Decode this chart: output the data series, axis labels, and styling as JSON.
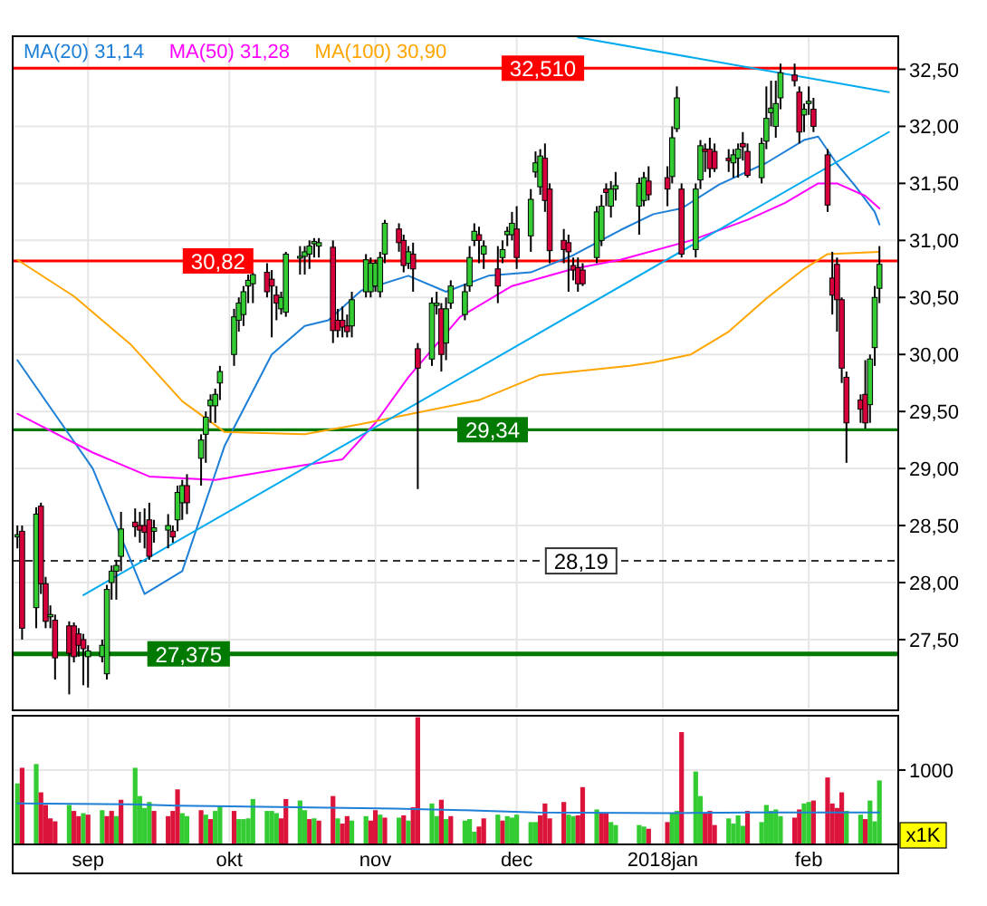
{
  "chart_data": [
    {
      "type": "candlestick",
      "x": [
        "2017-08-17",
        "2017-08-18",
        "2017-08-21",
        "2017-08-22",
        "2017-08-23",
        "2017-08-24",
        "2017-08-25",
        "2017-08-28",
        "2017-08-29",
        "2017-08-30",
        "2017-08-31",
        "2017-09-01",
        "2017-09-04",
        "2017-09-05",
        "2017-09-06",
        "2017-09-07",
        "2017-09-08",
        "2017-09-11",
        "2017-09-12",
        "2017-09-13",
        "2017-09-14",
        "2017-09-15",
        "2017-09-18",
        "2017-09-19",
        "2017-09-20",
        "2017-09-21",
        "2017-09-22",
        "2017-09-25",
        "2017-09-26",
        "2017-09-27",
        "2017-09-28",
        "2017-09-29",
        "2017-10-02",
        "2017-10-03",
        "2017-10-04",
        "2017-10-05",
        "2017-10-06",
        "2017-10-09",
        "2017-10-10",
        "2017-10-11",
        "2017-10-12",
        "2017-10-13",
        "2017-10-16",
        "2017-10-17",
        "2017-10-18",
        "2017-10-19",
        "2017-10-20",
        "2017-10-23",
        "2017-10-24",
        "2017-10-25",
        "2017-10-26",
        "2017-10-27",
        "2017-10-30",
        "2017-10-31",
        "2017-11-01",
        "2017-11-02",
        "2017-11-03",
        "2017-11-06",
        "2017-11-07",
        "2017-11-08",
        "2017-11-09",
        "2017-11-10",
        "2017-11-13",
        "2017-11-14",
        "2017-11-15",
        "2017-11-16",
        "2017-11-17",
        "2017-11-20",
        "2017-11-21",
        "2017-11-22",
        "2017-11-23",
        "2017-11-24",
        "2017-11-27",
        "2017-11-28",
        "2017-11-29",
        "2017-11-30",
        "2017-12-01",
        "2017-12-04",
        "2017-12-05",
        "2017-12-06",
        "2017-12-07",
        "2017-12-08",
        "2017-12-11",
        "2017-12-12",
        "2017-12-13",
        "2017-12-14",
        "2017-12-15",
        "2017-12-18",
        "2017-12-19",
        "2017-12-20",
        "2017-12-21",
        "2017-12-22",
        "2017-12-27",
        "2017-12-28",
        "2017-12-29",
        "2018-01-02",
        "2018-01-03",
        "2018-01-04",
        "2018-01-05",
        "2018-01-08",
        "2018-01-09",
        "2018-01-10",
        "2018-01-11",
        "2018-01-12",
        "2018-01-15",
        "2018-01-16",
        "2018-01-17",
        "2018-01-18",
        "2018-01-19",
        "2018-01-22",
        "2018-01-23",
        "2018-01-24",
        "2018-01-25",
        "2018-01-26",
        "2018-01-29",
        "2018-01-30",
        "2018-01-31",
        "2018-02-01",
        "2018-02-02",
        "2018-02-05",
        "2018-02-06",
        "2018-02-07",
        "2018-02-08",
        "2018-02-09",
        "2018-02-12",
        "2018-02-13",
        "2018-02-14",
        "2018-02-15",
        "2018-02-16"
      ],
      "ohlc": [
        [
          28.4,
          28.5,
          28.3,
          28.42
        ],
        [
          28.45,
          28.5,
          27.5,
          27.6
        ],
        [
          27.78,
          28.66,
          27.6,
          28.6
        ],
        [
          28.67,
          28.7,
          27.9,
          27.99
        ],
        [
          27.99,
          28.05,
          27.6,
          27.66
        ],
        [
          27.7,
          27.8,
          27.6,
          27.72
        ],
        [
          27.67,
          27.72,
          27.15,
          27.34
        ],
        [
          27.62,
          27.66,
          27.02,
          27.38
        ],
        [
          27.62,
          27.65,
          27.3,
          27.35
        ],
        [
          27.55,
          27.6,
          27.35,
          27.45
        ],
        [
          27.5,
          27.55,
          27.1,
          27.42
        ],
        [
          27.35,
          27.45,
          27.08,
          27.4
        ],
        [
          27.35,
          27.5,
          27.3,
          27.45
        ],
        [
          27.2,
          27.98,
          27.15,
          27.94
        ],
        [
          28.0,
          28.15,
          27.85,
          28.1
        ],
        [
          28.1,
          28.2,
          27.85,
          28.15
        ],
        [
          28.23,
          28.62,
          28.1,
          28.47
        ],
        [
          28.53,
          28.65,
          28.4,
          28.49
        ],
        [
          28.5,
          28.62,
          28.35,
          28.46
        ],
        [
          28.5,
          28.65,
          28.3,
          28.44
        ],
        [
          28.55,
          28.7,
          28.2,
          28.23
        ],
        [
          28.45,
          28.55,
          28.35,
          28.48
        ],
        [
          28.46,
          28.6,
          28.3,
          28.5
        ],
        [
          28.45,
          28.5,
          28.35,
          28.4
        ],
        [
          28.55,
          28.85,
          28.45,
          28.79
        ],
        [
          28.7,
          28.9,
          28.55,
          28.85
        ],
        [
          28.85,
          28.95,
          28.6,
          28.7
        ],
        [
          29.09,
          29.3,
          28.85,
          29.25
        ],
        [
          29.3,
          29.5,
          29.05,
          29.45
        ],
        [
          29.55,
          29.65,
          29.4,
          29.6
        ],
        [
          29.55,
          29.7,
          29.4,
          29.65
        ],
        [
          29.75,
          29.9,
          29.6,
          29.85
        ],
        [
          30.0,
          30.4,
          29.9,
          30.33
        ],
        [
          30.3,
          30.5,
          30.2,
          30.45
        ],
        [
          30.35,
          30.6,
          30.25,
          30.55
        ],
        [
          30.6,
          30.7,
          30.45,
          30.65
        ],
        [
          30.62,
          30.72,
          30.45,
          30.7
        ],
        [
          30.72,
          30.8,
          30.5,
          30.55
        ],
        [
          30.66,
          30.74,
          30.15,
          30.6
        ],
        [
          30.52,
          30.6,
          30.3,
          30.45
        ],
        [
          30.4,
          30.55,
          30.35,
          30.5
        ],
        [
          30.37,
          30.9,
          30.33,
          30.88
        ],
        [
          30.85,
          30.95,
          30.7,
          30.86
        ],
        [
          30.86,
          30.95,
          30.7,
          30.9
        ],
        [
          30.88,
          31.0,
          30.75,
          30.95
        ],
        [
          30.97,
          31.02,
          30.85,
          30.99
        ],
        [
          30.95,
          31.02,
          30.85,
          30.98
        ],
        [
          30.94,
          31.0,
          30.1,
          30.21
        ],
        [
          30.3,
          30.4,
          30.15,
          30.21
        ],
        [
          30.3,
          30.42,
          30.15,
          30.24
        ],
        [
          30.25,
          30.35,
          30.15,
          30.2
        ],
        [
          30.25,
          30.55,
          30.15,
          30.48
        ],
        [
          30.55,
          30.88,
          30.5,
          30.83
        ],
        [
          30.55,
          30.85,
          30.5,
          30.8
        ],
        [
          30.6,
          30.83,
          30.55,
          30.8
        ],
        [
          30.55,
          30.9,
          30.5,
          30.85
        ],
        [
          30.88,
          31.18,
          30.8,
          31.15
        ],
        [
          31.1,
          31.15,
          30.9,
          30.98
        ],
        [
          31.0,
          31.05,
          30.72,
          30.78
        ],
        [
          30.8,
          30.95,
          30.75,
          30.9
        ],
        [
          30.88,
          30.98,
          30.55,
          30.75
        ],
        [
          30.05,
          30.1,
          28.82,
          29.88
        ],
        [
          29.96,
          30.5,
          29.9,
          30.45
        ],
        [
          30.43,
          30.55,
          30.35,
          30.45
        ],
        [
          30.4,
          30.45,
          29.85,
          30.0
        ],
        [
          30.1,
          30.5,
          29.95,
          30.4
        ],
        [
          30.45,
          30.65,
          30.4,
          30.6
        ],
        [
          30.35,
          30.62,
          30.3,
          30.55
        ],
        [
          30.6,
          30.95,
          30.55,
          30.85
        ],
        [
          31.0,
          31.15,
          30.95,
          31.08
        ],
        [
          31.05,
          31.12,
          30.8,
          31.0
        ],
        [
          30.88,
          31.0,
          30.75,
          30.95
        ],
        [
          30.75,
          30.95,
          30.45,
          30.6
        ],
        [
          30.85,
          31.0,
          30.8,
          30.92
        ],
        [
          31.05,
          31.12,
          30.95,
          31.08
        ],
        [
          31.05,
          31.25,
          31.0,
          31.15
        ],
        [
          31.1,
          31.3,
          30.75,
          30.85
        ],
        [
          31.04,
          31.45,
          30.9,
          31.36
        ],
        [
          31.6,
          31.78,
          31.55,
          31.68
        ],
        [
          31.47,
          31.8,
          31.4,
          31.74
        ],
        [
          31.72,
          31.85,
          31.25,
          31.35
        ],
        [
          31.45,
          31.5,
          30.8,
          30.91
        ],
        [
          31.0,
          31.1,
          30.8,
          30.92
        ],
        [
          30.98,
          31.05,
          30.55,
          30.9
        ],
        [
          30.78,
          30.85,
          30.65,
          30.74
        ],
        [
          30.76,
          30.85,
          30.55,
          30.62
        ],
        [
          30.74,
          30.8,
          30.6,
          30.62
        ],
        [
          30.85,
          31.3,
          30.8,
          31.25
        ],
        [
          31.0,
          31.4,
          30.95,
          31.3
        ],
        [
          31.45,
          31.5,
          31.3,
          31.42
        ],
        [
          31.3,
          31.52,
          31.2,
          31.45
        ],
        [
          31.45,
          31.6,
          31.35,
          31.48
        ],
        [
          31.3,
          31.55,
          31.05,
          31.5
        ],
        [
          31.35,
          31.6,
          31.3,
          31.55
        ],
        [
          31.52,
          31.65,
          31.35,
          31.4
        ],
        [
          31.55,
          31.65,
          31.3,
          31.45
        ],
        [
          31.56,
          32.0,
          31.5,
          31.9
        ],
        [
          31.98,
          32.35,
          31.95,
          32.25
        ],
        [
          31.45,
          31.5,
          30.85,
          30.88
        ],
        [
          30.92,
          31.5,
          30.85,
          31.45
        ],
        [
          31.53,
          31.88,
          31.45,
          31.83
        ],
        [
          31.8,
          31.85,
          31.6,
          31.78
        ],
        [
          31.8,
          31.9,
          31.55,
          31.63
        ],
        [
          31.78,
          31.85,
          31.6,
          31.63
        ],
        [
          31.72,
          31.8,
          31.6,
          31.7
        ],
        [
          31.68,
          31.8,
          31.55,
          31.75
        ],
        [
          31.72,
          31.85,
          31.55,
          31.8
        ],
        [
          31.85,
          31.95,
          31.7,
          31.82
        ],
        [
          31.78,
          31.85,
          31.55,
          31.57
        ],
        [
          31.55,
          31.9,
          31.5,
          31.85
        ],
        [
          31.87,
          32.35,
          31.8,
          32.07
        ],
        [
          32.12,
          32.4,
          32.0,
          32.16
        ],
        [
          32.0,
          32.4,
          31.9,
          32.2
        ],
        [
          32.25,
          32.55,
          32.15,
          32.47
        ],
        [
          32.45,
          32.55,
          32.35,
          32.4
        ],
        [
          32.3,
          32.35,
          31.85,
          31.95
        ],
        [
          32.1,
          32.2,
          31.95,
          32.15
        ],
        [
          32.2,
          32.35,
          32.1,
          32.22
        ],
        [
          32.15,
          32.25,
          31.95,
          32.0
        ],
        [
          31.75,
          31.8,
          31.25,
          31.31
        ],
        [
          30.67,
          30.9,
          30.35,
          30.52
        ],
        [
          30.79,
          30.85,
          30.2,
          30.48
        ],
        [
          30.48,
          30.5,
          29.75,
          29.88
        ],
        [
          29.8,
          29.85,
          29.05,
          29.4
        ],
        [
          29.6,
          29.65,
          29.4,
          29.52
        ],
        [
          29.65,
          29.95,
          29.35,
          29.4
        ],
        [
          29.56,
          30.0,
          29.4,
          29.96
        ],
        [
          30.06,
          30.6,
          29.9,
          30.5
        ],
        [
          30.58,
          30.95,
          30.45,
          30.79
        ]
      ],
      "series": [
        {
          "type": "line",
          "name": "MA(20) 31,14",
          "color": "#1e7fd6",
          "x": [
            "2017-08-17",
            "2017-09-02",
            "2017-09-13",
            "2017-09-21",
            "2017-09-30",
            "2017-10-10",
            "2017-10-17",
            "2017-10-22",
            "2017-10-29",
            "2017-11-08",
            "2017-11-16",
            "2017-11-25",
            "2017-12-04",
            "2017-12-13",
            "2017-12-23",
            "2017-12-30",
            "2018-01-05",
            "2018-01-13",
            "2018-01-23",
            "2018-01-31",
            "2018-02-03",
            "2018-02-07",
            "2018-02-11",
            "2018-02-15",
            "2018-02-16"
          ],
          "values": [
            29.95,
            29.0,
            27.9,
            28.1,
            29.2,
            30.0,
            30.25,
            30.3,
            30.56,
            30.69,
            30.55,
            30.69,
            30.72,
            30.87,
            31.09,
            31.23,
            31.28,
            31.49,
            31.68,
            31.88,
            31.91,
            31.67,
            31.47,
            31.25,
            31.14
          ]
        },
        {
          "type": "line",
          "name": "MA(50) 31,28",
          "color": "#ff00ff",
          "x": [
            "2017-08-17",
            "2017-09-02",
            "2017-09-14",
            "2017-09-28",
            "2017-10-17",
            "2017-10-25",
            "2017-11-01",
            "2017-11-08",
            "2017-11-19",
            "2017-11-30",
            "2017-12-13",
            "2017-12-23",
            "2018-01-07",
            "2018-01-19",
            "2018-01-27",
            "2018-02-03",
            "2018-02-07",
            "2018-02-13",
            "2018-02-16"
          ],
          "values": [
            29.48,
            29.14,
            28.93,
            28.9,
            29.03,
            29.08,
            29.4,
            29.8,
            30.33,
            30.6,
            30.75,
            30.83,
            31.0,
            31.18,
            31.33,
            31.5,
            31.5,
            31.39,
            31.28
          ]
        },
        {
          "type": "line",
          "name": "MA(100) 30,90",
          "color": "#ffa500",
          "x": [
            "2017-08-17",
            "2017-08-29",
            "2017-09-10",
            "2017-09-21",
            "2017-09-30",
            "2017-10-17",
            "2017-10-29",
            "2017-11-23",
            "2017-12-06",
            "2017-12-25",
            "2017-12-30",
            "2018-01-07",
            "2018-01-15",
            "2018-01-23",
            "2018-01-31",
            "2018-02-05",
            "2018-02-16"
          ],
          "values": [
            30.83,
            30.51,
            30.09,
            29.59,
            29.32,
            29.3,
            29.39,
            29.6,
            29.82,
            29.9,
            29.93,
            30.0,
            30.2,
            30.49,
            30.75,
            30.88,
            30.9
          ]
        },
        {
          "type": "line",
          "color": "#00aaee",
          "x": [
            "2017-08-31",
            "2018-02-18"
          ],
          "values": [
            27.89,
            31.95
          ]
        },
        {
          "type": "line",
          "color": "#00aaee",
          "x": [
            "2017-12-14",
            "2018-02-18"
          ],
          "values": [
            32.78,
            32.3
          ]
        }
      ],
      "xlim": [
        "2017-08-16",
        "2018-02-20"
      ],
      "xticks": [
        {
          "value": "2017-09-01",
          "label": null
        },
        {
          "value": "2017-10-01",
          "label": null
        },
        {
          "value": "2017-11-01",
          "label": null
        },
        {
          "value": "2017-12-01",
          "label": null
        },
        {
          "value": "2018-01-01",
          "label": null
        },
        {
          "value": "2018-02-01",
          "label": null
        }
      ],
      "ylim": [
        26.88,
        32.79
      ],
      "yticks": [
        {
          "value": 27.5,
          "label": "27,50"
        },
        {
          "value": 28,
          "label": "28,00"
        },
        {
          "value": 28.5,
          "label": "28,50"
        },
        {
          "value": 29,
          "label": "29,00"
        },
        {
          "value": 29.5,
          "label": "29,50"
        },
        {
          "value": 30,
          "label": "30,00"
        },
        {
          "value": 30.5,
          "label": "30,50"
        },
        {
          "value": 31,
          "label": "31,00"
        },
        {
          "value": 31.5,
          "label": "31,50"
        },
        {
          "value": 32,
          "label": "32,00"
        },
        {
          "value": 32.5,
          "label": "32,50"
        }
      ],
      "ref_lines": [
        {
          "axis": "y",
          "value": 32.51,
          "label": "32,510",
          "color": "#ff0000"
        },
        {
          "axis": "y",
          "value": 30.82,
          "label": "30,82",
          "color": "#ff0000"
        },
        {
          "axis": "y",
          "value": 29.34,
          "label": "29,34",
          "color": "#007a00"
        },
        {
          "axis": "y",
          "value": 28.19,
          "label": "28,19",
          "color": "#333333",
          "line_style": "dashed"
        },
        {
          "axis": "y",
          "value": 27.375,
          "label": "27,375",
          "color": "#007a00"
        }
      ],
      "grid": true,
      "legend": "top left",
      "tick_labels": "y"
    },
    {
      "type": "bar",
      "x": [
        "2017-08-17",
        "2017-08-18",
        "2017-08-21",
        "2017-08-22",
        "2017-08-23",
        "2017-08-24",
        "2017-08-25",
        "2017-08-28",
        "2017-08-29",
        "2017-08-30",
        "2017-08-31",
        "2017-09-01",
        "2017-09-04",
        "2017-09-05",
        "2017-09-06",
        "2017-09-07",
        "2017-09-08",
        "2017-09-11",
        "2017-09-12",
        "2017-09-13",
        "2017-09-14",
        "2017-09-15",
        "2017-09-18",
        "2017-09-19",
        "2017-09-20",
        "2017-09-21",
        "2017-09-22",
        "2017-09-25",
        "2017-09-26",
        "2017-09-27",
        "2017-09-28",
        "2017-09-29",
        "2017-10-02",
        "2017-10-03",
        "2017-10-04",
        "2017-10-05",
        "2017-10-06",
        "2017-10-09",
        "2017-10-10",
        "2017-10-11",
        "2017-10-12",
        "2017-10-13",
        "2017-10-16",
        "2017-10-17",
        "2017-10-18",
        "2017-10-19",
        "2017-10-20",
        "2017-10-23",
        "2017-10-24",
        "2017-10-25",
        "2017-10-26",
        "2017-10-27",
        "2017-10-30",
        "2017-10-31",
        "2017-11-01",
        "2017-11-02",
        "2017-11-03",
        "2017-11-06",
        "2017-11-07",
        "2017-11-08",
        "2017-11-09",
        "2017-11-10",
        "2017-11-13",
        "2017-11-14",
        "2017-11-15",
        "2017-11-16",
        "2017-11-17",
        "2017-11-20",
        "2017-11-21",
        "2017-11-22",
        "2017-11-23",
        "2017-11-24",
        "2017-11-27",
        "2017-11-28",
        "2017-11-29",
        "2017-11-30",
        "2017-12-01",
        "2017-12-04",
        "2017-12-05",
        "2017-12-06",
        "2017-12-07",
        "2017-12-08",
        "2017-12-11",
        "2017-12-12",
        "2017-12-13",
        "2017-12-14",
        "2017-12-15",
        "2017-12-18",
        "2017-12-19",
        "2017-12-20",
        "2017-12-21",
        "2017-12-22",
        "2017-12-27",
        "2017-12-28",
        "2017-12-29",
        "2018-01-02",
        "2018-01-03",
        "2018-01-04",
        "2018-01-05",
        "2018-01-08",
        "2018-01-09",
        "2018-01-10",
        "2018-01-11",
        "2018-01-12",
        "2018-01-15",
        "2018-01-16",
        "2018-01-17",
        "2018-01-18",
        "2018-01-19",
        "2018-01-22",
        "2018-01-23",
        "2018-01-24",
        "2018-01-25",
        "2018-01-26",
        "2018-01-29",
        "2018-01-30",
        "2018-01-31",
        "2018-02-01",
        "2018-02-02",
        "2018-02-05",
        "2018-02-06",
        "2018-02-07",
        "2018-02-08",
        "2018-02-09",
        "2018-02-12",
        "2018-02-13",
        "2018-02-14",
        "2018-02-15",
        "2018-02-16"
      ],
      "series": [
        {
          "type": "bar",
          "values": [
            820,
            1030,
            1080,
            700,
            530,
            350,
            310,
            530,
            450,
            380,
            420,
            400,
            460,
            380,
            450,
            380,
            600,
            1030,
            650,
            490,
            570,
            450,
            380,
            450,
            740,
            420,
            380,
            460,
            400,
            340,
            450,
            520,
            450,
            340,
            340,
            350,
            610,
            450,
            450,
            420,
            350,
            610,
            590,
            460,
            340,
            350,
            320,
            650,
            350,
            280,
            380,
            320,
            380,
            320,
            460,
            400,
            360,
            360,
            390,
            320,
            500,
            1710,
            550,
            380,
            600,
            340,
            380,
            320,
            340,
            170,
            240,
            350,
            400,
            320,
            380,
            360,
            400,
            300,
            300,
            390,
            550,
            350,
            570,
            400,
            380,
            390,
            770,
            470,
            420,
            420,
            300,
            260,
            260,
            240,
            210,
            300,
            420,
            450,
            1510,
            980,
            650,
            420,
            450,
            260,
            350,
            280,
            390,
            250,
            450,
            300,
            530,
            450,
            470,
            380,
            360,
            470,
            550,
            570,
            590,
            900,
            550,
            490,
            700,
            450,
            400,
            340,
            590,
            310,
            860
          ],
          "colors": [
            "#33cc33",
            "#dc143c",
            "#33cc33",
            "#dc143c",
            "#dc143c",
            "#dc143c",
            "#dc143c",
            "#33cc33",
            "#dc143c",
            "#dc143c",
            "#33cc33",
            "#dc143c",
            "#33cc33",
            "#dc143c",
            "#dc143c",
            "#33cc33",
            "#dc143c",
            "#33cc33",
            "#33cc33",
            "#33cc33",
            "#33cc33",
            "#dc143c",
            "#dc143c",
            "#dc143c",
            "#dc143c",
            "#33cc33",
            "#33cc33",
            "#dc143c",
            "#33cc33",
            "#dc143c",
            "#33cc33",
            "#33cc33",
            "#dc143c",
            "#33cc33",
            "#33cc33",
            "#33cc33",
            "#33cc33",
            "#33cc33",
            "#33cc33",
            "#33cc33",
            "#dc143c",
            "#dc143c",
            "#33cc33",
            "#33cc33",
            "#dc143c",
            "#33cc33",
            "#dc143c",
            "#dc143c",
            "#33cc33",
            "#dc143c",
            "#dc143c",
            "#33cc33",
            "#33cc33",
            "#dc143c",
            "#dc143c",
            "#33cc33",
            "#dc143c",
            "#33cc33",
            "#dc143c",
            "#33cc33",
            "#dc143c",
            "#dc143c",
            "#33cc33",
            "#33cc33",
            "#dc143c",
            "#33cc33",
            "#dc143c",
            "#33cc33",
            "#33cc33",
            "#33cc33",
            "#dc143c",
            "#dc143c",
            "#33cc33",
            "#dc143c",
            "#33cc33",
            "#33cc33",
            "#33cc33",
            "#33cc33",
            "#33cc33",
            "#dc143c",
            "#dc143c",
            "#dc143c",
            "#dc143c",
            "#33cc33",
            "#33cc33",
            "#dc143c",
            "#dc143c",
            "#33cc33",
            "#dc143c",
            "#dc143c",
            "#33cc33",
            "#33cc33",
            "#33cc33",
            "#33cc33",
            "#dc143c",
            "#dc143c",
            "#33cc33",
            "#33cc33",
            "#dc143c",
            "#33cc33",
            "#33cc33",
            "#dc143c",
            "#dc143c",
            "#dc143c",
            "#33cc33",
            "#33cc33",
            "#33cc33",
            "#33cc33",
            "#dc143c",
            "#33cc33",
            "#33cc33",
            "#33cc33",
            "#33cc33",
            "#33cc33",
            "#dc143c",
            "#dc143c",
            "#33cc33",
            "#33cc33",
            "#dc143c",
            "#dc143c",
            "#dc143c",
            "#dc143c",
            "#dc143c",
            "#33cc33",
            "#33cc33",
            "#dc143c",
            "#33cc33",
            "#33cc33",
            "#33cc33"
          ]
        },
        {
          "type": "line",
          "color": "#1e7fd6",
          "x": [
            "2017-08-17",
            "2017-09-10",
            "2017-09-20",
            "2017-10-15",
            "2017-11-05",
            "2017-11-20",
            "2017-12-05",
            "2018-01-02",
            "2018-01-20",
            "2018-02-16"
          ],
          "values": [
            550,
            540,
            520,
            500,
            480,
            460,
            430,
            420,
            430,
            430
          ]
        }
      ],
      "xlim": [
        "2017-08-16",
        "2018-02-20"
      ],
      "xticks": [
        {
          "value": "2017-09-01",
          "label": "sep"
        },
        {
          "value": "2017-10-01",
          "label": "okt"
        },
        {
          "value": "2017-11-01",
          "label": "nov"
        },
        {
          "value": "2017-12-01",
          "label": "dec"
        },
        {
          "value": "2018-01-01",
          "label": "2018jan"
        },
        {
          "value": "2018-02-01",
          "label": "feb"
        }
      ],
      "ylim": [
        0,
        1730
      ],
      "yticks": [
        1000
      ],
      "annotations": [
        "x1K"
      ],
      "grid": true
    }
  ]
}
